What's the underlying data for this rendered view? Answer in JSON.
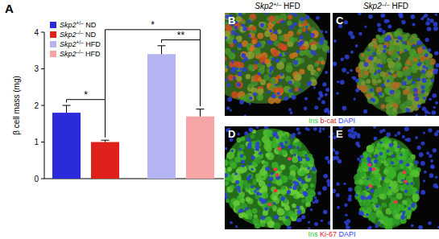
{
  "chart_data": {
    "type": "bar",
    "panel_label": "A",
    "y_label": "β cell mass (mg)",
    "categories": [
      "Skp2+/– ND",
      "Skp2–/– ND",
      "Skp2+/– HFD",
      "Skp2–/– HFD"
    ],
    "values": [
      1.8,
      1.0,
      3.4,
      1.7
    ],
    "errors": [
      0.2,
      0.05,
      0.23,
      0.2
    ],
    "colors": [
      "#2b2bdc",
      "#e0201a",
      "#b4b4f2",
      "#f5a5a5"
    ],
    "ylim": [
      0,
      4
    ],
    "yticks": [
      0,
      1,
      2,
      3,
      4
    ],
    "legend": "top-left",
    "tick_labels": "y",
    "annotations": [
      {
        "text": "*",
        "between": [
          "Skp2+/– ND",
          "Skp2–/– ND"
        ]
      },
      {
        "text": "**",
        "between": [
          "Skp2+/– HFD",
          "Skp2–/– HFD"
        ]
      },
      {
        "text": "*",
        "between": [
          "Skp2–/– ND",
          "Skp2–/– HFD"
        ]
      }
    ]
  },
  "image_panels": {
    "column_titles": [
      "Skp2+/– HFD",
      "Skp2–/– HFD"
    ],
    "panels": [
      {
        "label": "B"
      },
      {
        "label": "C"
      },
      {
        "label": "D"
      },
      {
        "label": "E"
      }
    ],
    "stain_labels": [
      [
        {
          "text": "Ins",
          "color": "#33cc33"
        },
        {
          "text": "b-cat",
          "color": "#e02020"
        },
        {
          "text": "DAPI",
          "color": "#3344ff"
        }
      ],
      [
        {
          "text": "Ins",
          "color": "#33cc33"
        },
        {
          "text": "Ki-67",
          "color": "#e02020"
        },
        {
          "text": "DAPI",
          "color": "#3344ff"
        }
      ]
    ]
  }
}
